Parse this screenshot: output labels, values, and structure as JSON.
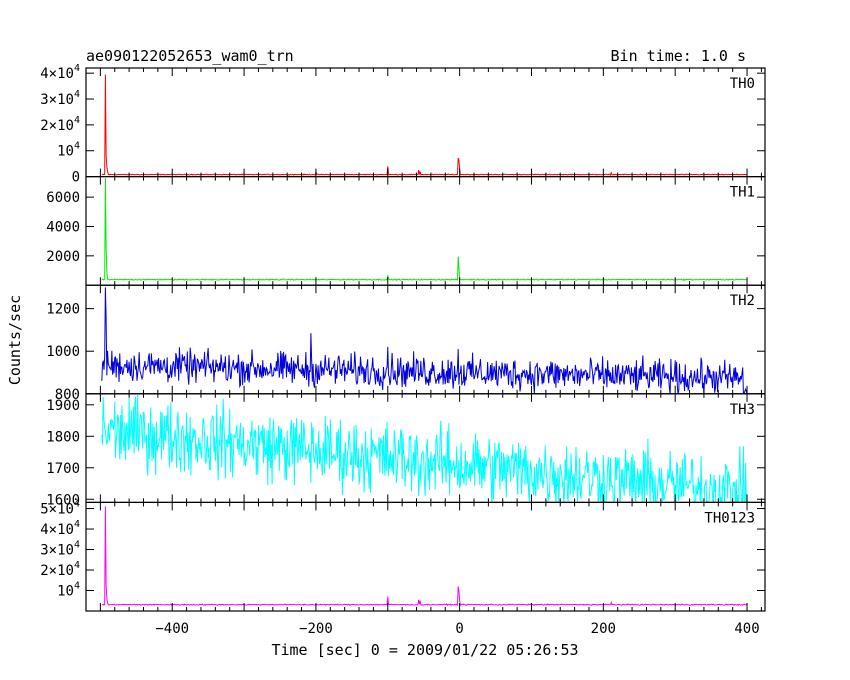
{
  "title": "ae090122052653_wam0_trn",
  "bin_label": "Bin time: 1.0 s",
  "xlabel": "Time [sec] 0 = 2009/01/22 05:26:53",
  "ylabel": "Counts/sec",
  "chart_data": {
    "type": "line",
    "xlim": [
      -520,
      425
    ],
    "x_ticks": [
      -400,
      -200,
      0,
      200,
      400
    ],
    "x_tick_labels": [
      "−400",
      "−200",
      "0",
      "200",
      "400"
    ],
    "panels": [
      {
        "name": "TH0",
        "color": "#ff0000",
        "ylim": [
          0,
          42000
        ],
        "y_ticks": [
          0,
          10000,
          20000,
          30000,
          40000
        ],
        "y_tick_labels": [
          {
            "mantissa": "0",
            "exp": ""
          },
          {
            "mantissa": "10",
            "exp": "4"
          },
          {
            "mantissa": "2×10",
            "exp": "4"
          },
          {
            "mantissa": "3×10",
            "exp": "4"
          },
          {
            "mantissa": "4×10",
            "exp": "4"
          }
        ],
        "baseline": 800,
        "noise": 150,
        "trend": 0,
        "spikes": [
          [
            -493,
            39500
          ],
          [
            -492,
            8000
          ],
          [
            -491,
            4000
          ],
          [
            -490,
            2000
          ],
          [
            -200,
            1800
          ],
          [
            -100,
            4000
          ],
          [
            -57,
            2500
          ],
          [
            -55,
            2000
          ],
          [
            -2,
            7200
          ],
          [
            -1,
            6500
          ],
          [
            0,
            3000
          ],
          [
            211,
            1500
          ]
        ]
      },
      {
        "name": "TH1",
        "color": "#00ee00",
        "ylim": [
          0,
          7400
        ],
        "y_ticks": [
          2000,
          4000,
          6000
        ],
        "y_tick_labels": [
          {
            "mantissa": "2000",
            "exp": ""
          },
          {
            "mantissa": "4000",
            "exp": ""
          },
          {
            "mantissa": "6000",
            "exp": ""
          }
        ],
        "baseline": 380,
        "noise": 35,
        "trend": 0,
        "spikes": [
          [
            -493,
            7300
          ],
          [
            -492,
            2500
          ],
          [
            -491,
            900
          ],
          [
            -100,
            700
          ],
          [
            -2,
            1950
          ],
          [
            -1,
            1200
          ]
        ]
      },
      {
        "name": "TH2",
        "color": "#0000dd",
        "ylim": [
          800,
          1310
        ],
        "y_ticks": [
          800,
          1000,
          1200
        ],
        "y_tick_labels": [
          {
            "mantissa": "800",
            "exp": ""
          },
          {
            "mantissa": "1000",
            "exp": ""
          },
          {
            "mantissa": "1200",
            "exp": ""
          }
        ],
        "baseline": 935,
        "noise": 75,
        "trend": -0.07,
        "spikes": [
          [
            -493,
            1300
          ],
          [
            -492,
            1150
          ],
          [
            -207,
            1085
          ],
          [
            -100,
            1020
          ],
          [
            -2,
            1010
          ]
        ]
      },
      {
        "name": "TH3",
        "color": "#00ffff",
        "ylim": [
          1590,
          1935
        ],
        "y_ticks": [
          1600,
          1700,
          1800,
          1900
        ],
        "y_tick_labels": [
          {
            "mantissa": "1600",
            "exp": ""
          },
          {
            "mantissa": "1700",
            "exp": ""
          },
          {
            "mantissa": "1800",
            "exp": ""
          },
          {
            "mantissa": "1900",
            "exp": ""
          }
        ],
        "baseline": 1820,
        "noise": 110,
        "trend": -0.22,
        "spikes": []
      },
      {
        "name": "TH0123",
        "color": "#ff00ff",
        "ylim": [
          0,
          53000
        ],
        "y_ticks": [
          10000,
          20000,
          30000,
          40000,
          50000
        ],
        "y_tick_labels": [
          {
            "mantissa": "10",
            "exp": "4"
          },
          {
            "mantissa": "2×10",
            "exp": "4"
          },
          {
            "mantissa": "3×10",
            "exp": "4"
          },
          {
            "mantissa": "4×10",
            "exp": "4"
          },
          {
            "mantissa": "5×10",
            "exp": "4"
          }
        ],
        "baseline": 3100,
        "noise": 250,
        "trend": 0,
        "spikes": [
          [
            -493,
            51000
          ],
          [
            -492,
            13000
          ],
          [
            -491,
            6000
          ],
          [
            -490,
            4000
          ],
          [
            -100,
            7000
          ],
          [
            -57,
            5500
          ],
          [
            -55,
            5000
          ],
          [
            -2,
            12000
          ],
          [
            -1,
            10000
          ],
          [
            0,
            5000
          ],
          [
            211,
            4200
          ]
        ]
      }
    ]
  }
}
